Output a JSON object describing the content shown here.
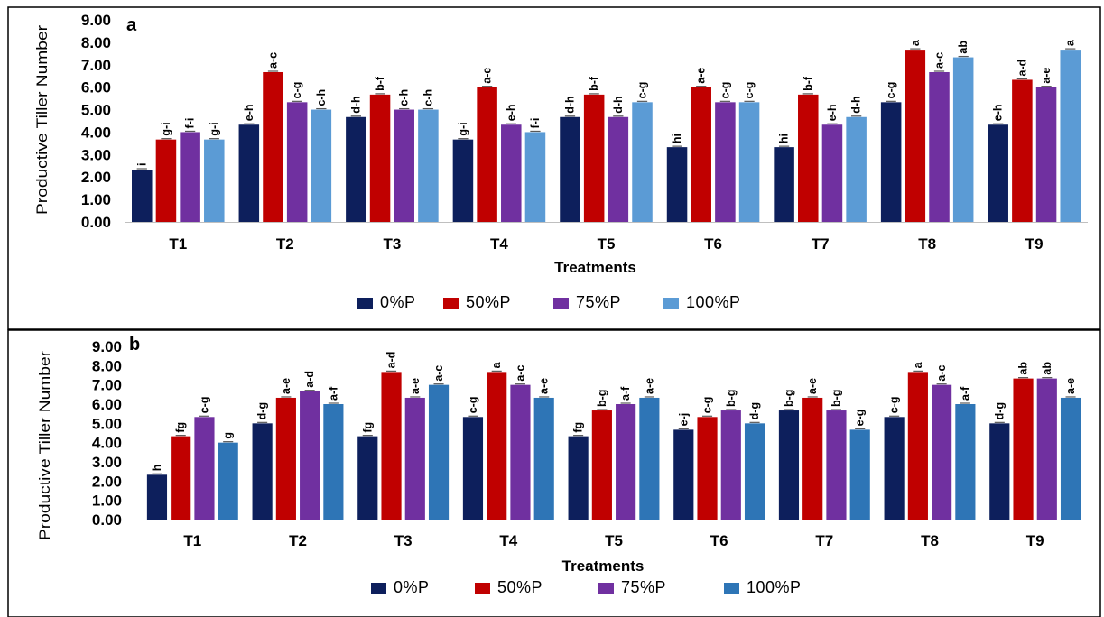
{
  "legend_colors": {
    "0%P": "#0d1f5c",
    "50%P": "#c00000",
    "75%P": "#7030a0",
    "100%P": "#5b9bd5"
  },
  "chart_data": [
    {
      "type": "bar",
      "panel_label": "a",
      "xlabel": "Treatments",
      "ylabel": "Productive Tiller Number",
      "ylim": [
        0,
        9
      ],
      "yticks": [
        "0.00",
        "1.00",
        "2.00",
        "3.00",
        "4.00",
        "5.00",
        "6.00",
        "7.00",
        "8.00",
        "9.00"
      ],
      "categories": [
        "T1",
        "T2",
        "T3",
        "T4",
        "T5",
        "T6",
        "T7",
        "T8",
        "T9"
      ],
      "legend_position": "bottom",
      "series": [
        {
          "name": "0%P",
          "color": "#0d1f5c",
          "values": [
            2.33,
            4.33,
            4.67,
            3.67,
            4.67,
            3.33,
            3.33,
            5.33,
            4.33
          ],
          "letters": [
            "i",
            "e-h",
            "d-h",
            "g-i",
            "d-h",
            "hi",
            "hi",
            "c-g",
            "e-h"
          ]
        },
        {
          "name": "50%P",
          "color": "#c00000",
          "values": [
            3.67,
            6.67,
            5.67,
            6.0,
            5.67,
            6.0,
            5.67,
            7.67,
            6.33
          ],
          "letters": [
            "g-i",
            "a-c",
            "b-f",
            "a-e",
            "b-f",
            "a-e",
            "b-f",
            "a",
            "a-d"
          ]
        },
        {
          "name": "75%P",
          "color": "#7030a0",
          "values": [
            4.0,
            5.33,
            5.0,
            4.33,
            4.67,
            5.33,
            4.33,
            6.67,
            6.0
          ],
          "letters": [
            "f-i",
            "c-g",
            "c-h",
            "e-h",
            "d-h",
            "c-g",
            "e-h",
            "a-c",
            "a-e"
          ]
        },
        {
          "name": "100%P",
          "color": "#5b9bd5",
          "values": [
            3.67,
            5.0,
            5.0,
            4.0,
            5.33,
            5.33,
            4.67,
            7.33,
            7.67
          ],
          "letters": [
            "g-i",
            "c-h",
            "c-h",
            "f-i",
            "c-g",
            "c-g",
            "d-h",
            "ab",
            "a"
          ]
        }
      ]
    },
    {
      "type": "bar",
      "panel_label": "b",
      "xlabel": "Treatments",
      "ylabel": "Productive Tiller Number",
      "ylim": [
        0,
        9
      ],
      "yticks": [
        "0.00",
        "1.00",
        "2.00",
        "3.00",
        "4.00",
        "5.00",
        "6.00",
        "7.00",
        "8.00",
        "9.00"
      ],
      "categories": [
        "T1",
        "T2",
        "T3",
        "T4",
        "T5",
        "T6",
        "T7",
        "T8",
        "T9"
      ],
      "legend_position": "bottom",
      "series": [
        {
          "name": "0%P",
          "color": "#0d1f5c",
          "values": [
            2.33,
            5.0,
            4.33,
            5.33,
            4.33,
            4.67,
            5.67,
            5.33,
            5.0
          ],
          "letters": [
            "h",
            "d-g",
            "fg",
            "c-g",
            "fg",
            "e-j",
            "b-g",
            "c-g",
            "d-g"
          ]
        },
        {
          "name": "50%P",
          "color": "#c00000",
          "values": [
            4.33,
            6.33,
            7.67,
            7.67,
            5.67,
            5.33,
            6.33,
            7.67,
            7.33
          ],
          "letters": [
            "fg",
            "a-e",
            "a-d",
            "a",
            "b-g",
            "c-g",
            "a-e",
            "a",
            "ab"
          ]
        },
        {
          "name": "75%P",
          "color": "#7030a0",
          "values": [
            5.33,
            6.67,
            6.33,
            7.0,
            6.0,
            5.67,
            5.67,
            7.0,
            7.33
          ],
          "letters": [
            "c-g",
            "a-d",
            "a-e",
            "a-c",
            "a-f",
            "b-g",
            "b-g",
            "a-c",
            "ab"
          ]
        },
        {
          "name": "100%P",
          "color": "#2e75b6",
          "values": [
            4.0,
            6.0,
            7.0,
            6.33,
            6.33,
            5.0,
            4.67,
            6.0,
            6.33
          ],
          "letters": [
            "g",
            "a-f",
            "a-c",
            "a-e",
            "a-e",
            "d-g",
            "e-g",
            "a-f",
            "a-e"
          ]
        }
      ]
    }
  ]
}
